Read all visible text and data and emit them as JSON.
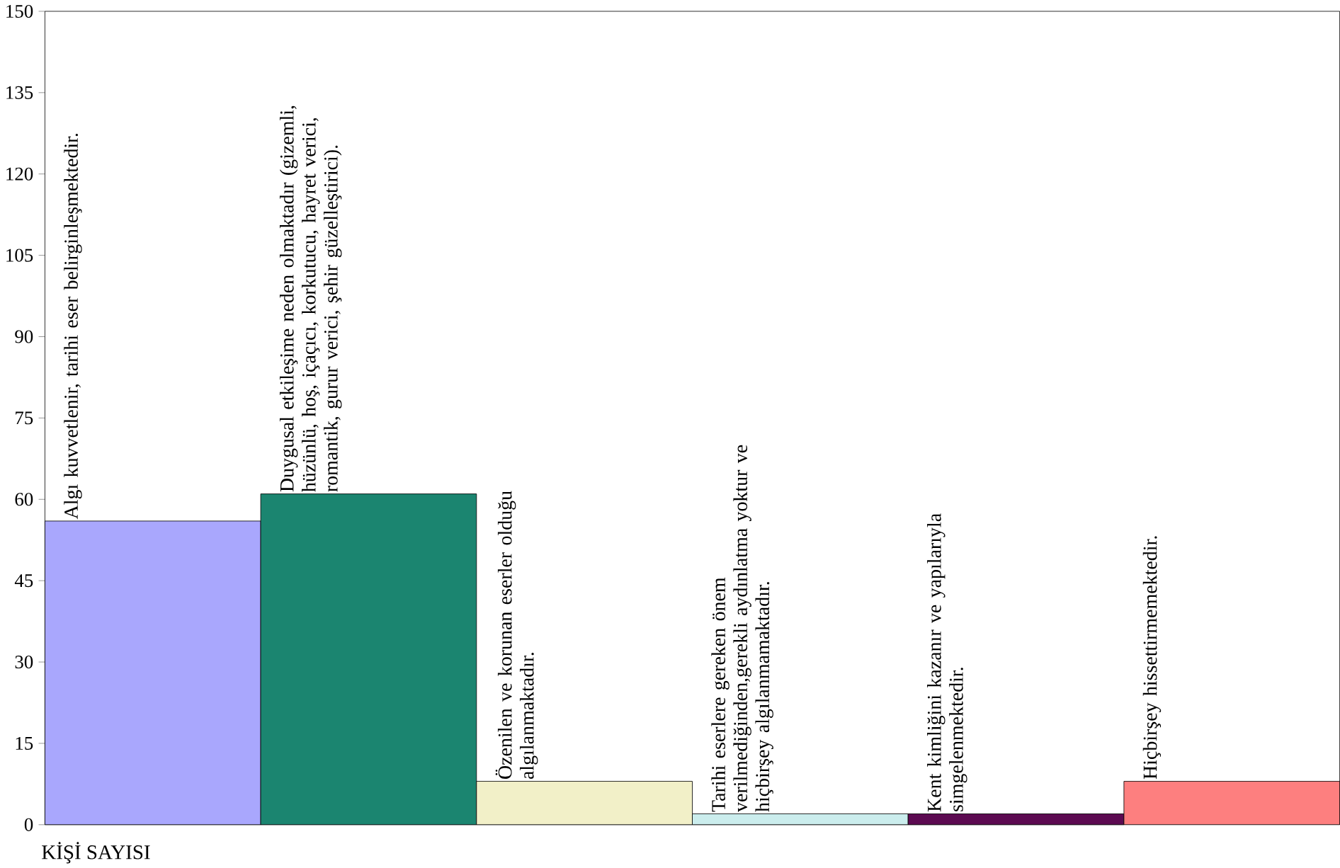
{
  "chart_data": {
    "type": "bar",
    "xlabel": "KİŞİ SAYISI",
    "categories": [
      "Algı kuvvetlenir, tarihi eser belirginleşmektedir.",
      "Duygusal etkileşime neden olmaktadır (gizemli, hüzünlü, hoş, içaçıcı, korkutucu, hayret verici, romantik, gurur verici, şehir güzelleştirici).",
      "Özenilen ve korunan eserler olduğu algılanmaktadır.",
      "Tarihi eserlere gereken önem verilmediğinden,gerekli aydınlatma yoktur ve hiçbirşey algılanmamaktadır.",
      "Kent kimliğini kazanır ve yapılarıyla simgelenmektedir.",
      "Hiçbirşey hissettirmemektedir."
    ],
    "values": [
      56,
      61,
      8,
      2,
      2,
      8
    ],
    "colors": [
      "#a9a7fd",
      "#1b8570",
      "#f2f0c8",
      "#cbeded",
      "#5c0a51",
      "#fd7f7f"
    ],
    "ylim": [
      0,
      150
    ],
    "yticks": [
      0,
      15,
      30,
      45,
      60,
      75,
      90,
      105,
      120,
      135,
      150
    ]
  }
}
